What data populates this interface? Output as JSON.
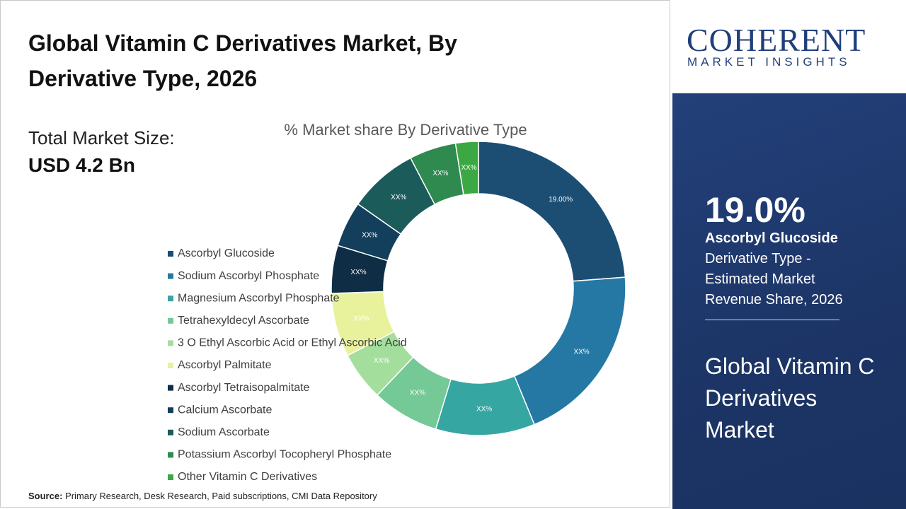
{
  "header": {
    "title": "Global Vitamin C Derivatives Market, By Derivative Type, 2026"
  },
  "market_size": {
    "label": "Total Market Size:",
    "value": "USD 4.2 Bn"
  },
  "chart_data": {
    "type": "donut",
    "title": "% Market share By Derivative Type",
    "categories": [
      "Ascorbyl Glucoside",
      "Sodium Ascorbyl Phosphate",
      "Magnesium Ascorbyl Phosphate",
      "Tetrahexyldecyl Ascorbate",
      "3 O Ethyl Ascorbic Acid or Ethyl Ascorbic Acid",
      "Ascorbyl Palmitate",
      "Ascorbyl Tetraisopalmitate",
      "Calcium Ascorbate",
      "Sodium Ascorbate",
      "Potassium Ascorbyl Tocopheryl Phosphate",
      "Other Vitamin C Derivatives"
    ],
    "values": [
      19,
      16,
      8.7,
      5.9,
      4.3,
      5.6,
      4.2,
      4,
      6.1,
      4.1,
      2
    ],
    "value_labels": [
      "19.00%",
      "XX%",
      "XX%",
      "XX%",
      "XX%",
      "XX%",
      "XX%",
      "XX%",
      "XX%",
      "XX%",
      "XX%"
    ],
    "colors": [
      "#1c4e74",
      "#2578a3",
      "#36a6a2",
      "#74c996",
      "#a4de9c",
      "#e8f29c",
      "#0f2d45",
      "#143f5c",
      "#1b5c5b",
      "#2e8a4f",
      "#3ca843"
    ]
  },
  "source": {
    "label": "Source:",
    "text": "Primary Research, Desk Research, Paid subscriptions, CMI Data Repository"
  },
  "sidebar": {
    "logo_main": "COHERENT",
    "logo_sub": "MARKET INSIGHTS",
    "highlight_value": "19.0%",
    "highlight_name": "Ascorbyl Glucoside",
    "highlight_caption": "Derivative Type - Estimated Market Revenue Share, 2026",
    "market_title": "Global Vitamin C Derivatives Market"
  }
}
